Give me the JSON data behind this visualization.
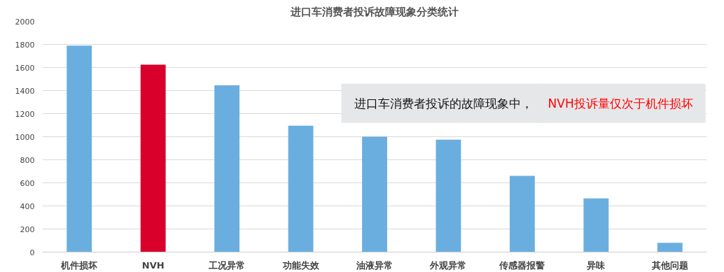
{
  "chart_data": {
    "type": "bar",
    "title": "进口车消费者投诉故障现象分类统计",
    "categories": [
      "机件损坏",
      "NVH",
      "工况异常",
      "功能失效",
      "油液异常",
      "外观异常",
      "传感器报警",
      "异味",
      "其他问题"
    ],
    "values": [
      1790,
      1625,
      1445,
      1095,
      1000,
      975,
      660,
      465,
      80
    ],
    "colors": [
      "#6aaee0",
      "#d9002b",
      "#6aaee0",
      "#6aaee0",
      "#6aaee0",
      "#6aaee0",
      "#6aaee0",
      "#6aaee0",
      "#6aaee0"
    ],
    "ylim": [
      0,
      2000
    ],
    "yticks": [
      0,
      200,
      400,
      600,
      800,
      1000,
      1200,
      1400,
      1600,
      1800,
      2000
    ],
    "grid": "y",
    "annotations": [
      "进口车消费者投诉的故障现象中，",
      "NVH投诉量仅次于机件损坏"
    ]
  }
}
